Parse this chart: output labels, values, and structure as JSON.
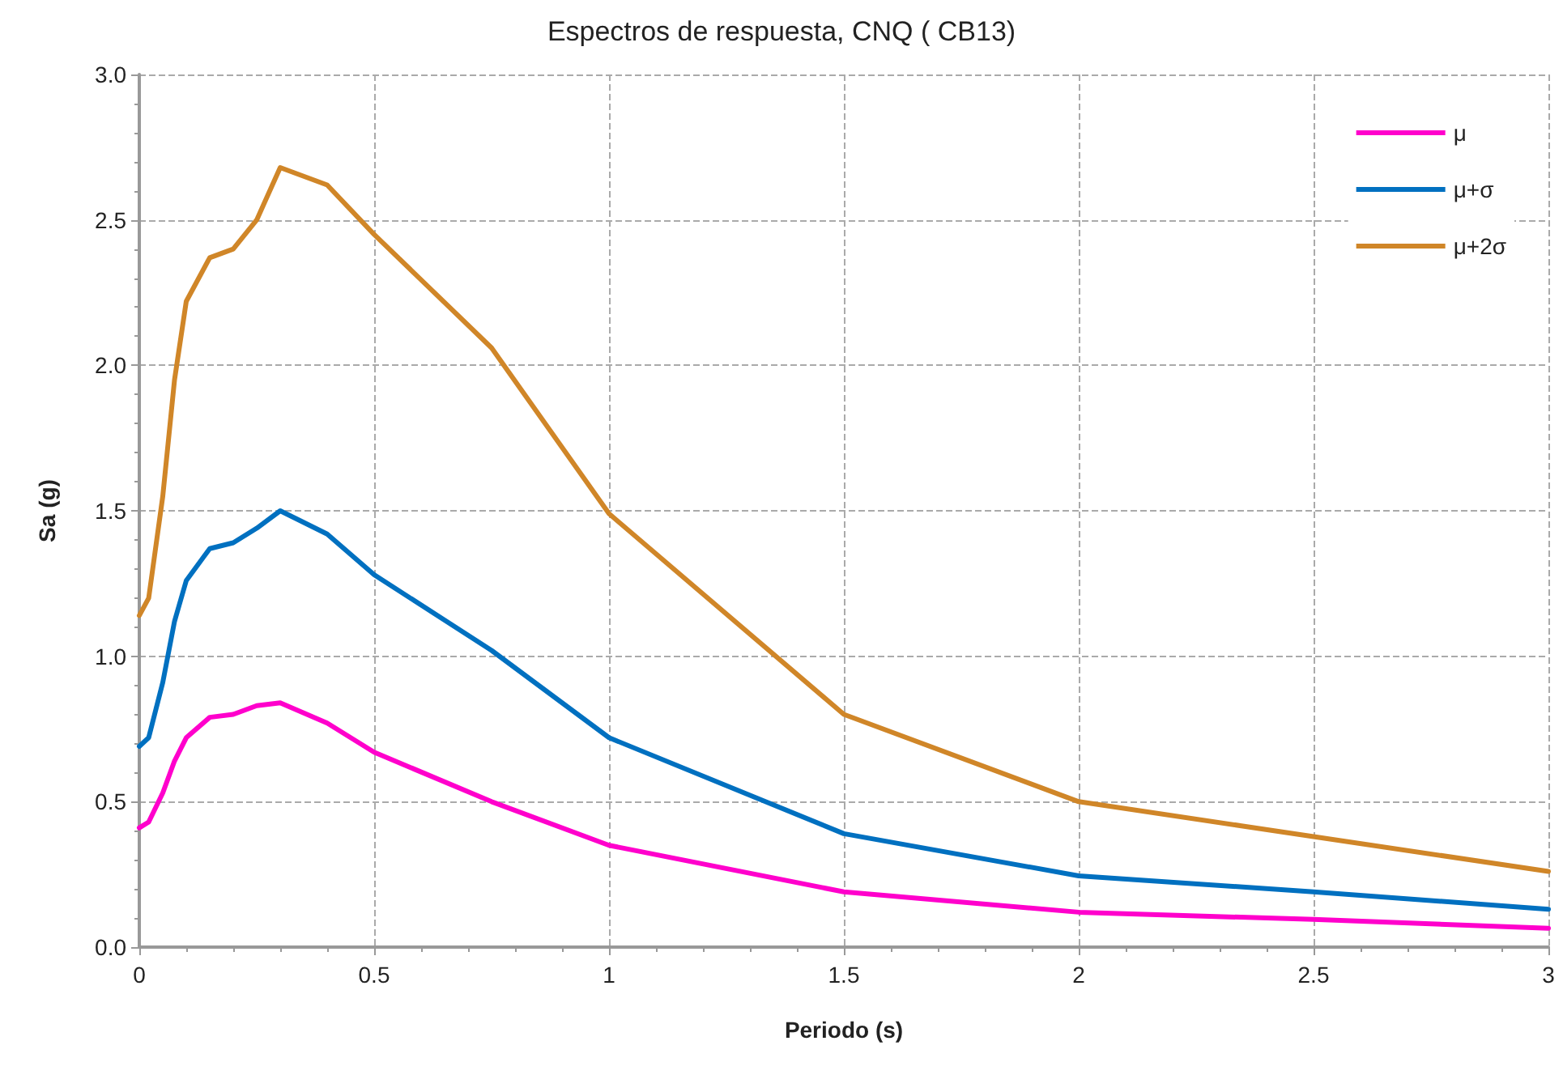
{
  "chart_data": {
    "type": "line",
    "title": "Espectros de respuesta, CNQ ( CB13)",
    "xlabel": "Periodo (s)",
    "ylabel": "Sa (g)",
    "x": [
      0,
      0.02,
      0.05,
      0.075,
      0.1,
      0.15,
      0.2,
      0.25,
      0.3,
      0.4,
      0.5,
      0.75,
      1,
      1.5,
      2,
      2.5,
      3
    ],
    "series": [
      {
        "name": "μ",
        "color": "#ff00cc",
        "values": [
          0.41,
          0.43,
          0.53,
          0.64,
          0.72,
          0.79,
          0.8,
          0.83,
          0.84,
          0.77,
          0.67,
          0.5,
          0.35,
          0.19,
          0.12,
          0.095,
          0.065
        ]
      },
      {
        "name": "μ+σ",
        "color": "#0070c0",
        "values": [
          0.69,
          0.72,
          0.91,
          1.12,
          1.26,
          1.37,
          1.39,
          1.44,
          1.5,
          1.42,
          1.28,
          1.02,
          0.72,
          0.39,
          0.245,
          0.19,
          0.13
        ]
      },
      {
        "name": "μ+2σ",
        "color": "#d08628",
        "values": [
          1.14,
          1.2,
          1.55,
          1.95,
          2.22,
          2.37,
          2.4,
          2.5,
          2.68,
          2.62,
          2.45,
          2.06,
          1.49,
          0.8,
          0.5,
          0.38,
          0.26
        ]
      }
    ],
    "xlim": [
      0,
      3
    ],
    "xticks": [
      0,
      0.5,
      1,
      1.5,
      2,
      2.5,
      3
    ],
    "ylim": [
      0,
      3
    ],
    "yticks": [
      {
        "value": 0,
        "label": "0.0"
      },
      {
        "value": 0.5,
        "label": "0.5"
      },
      {
        "value": 1,
        "label": "1.0"
      },
      {
        "value": 1.5,
        "label": "1.5"
      },
      {
        "value": 2,
        "label": "2.0"
      },
      {
        "value": 2.5,
        "label": "2.5"
      },
      {
        "value": 3,
        "label": "3.0"
      }
    ],
    "grid": true,
    "legend": "top right",
    "marker": "none",
    "line_style": "solid"
  }
}
